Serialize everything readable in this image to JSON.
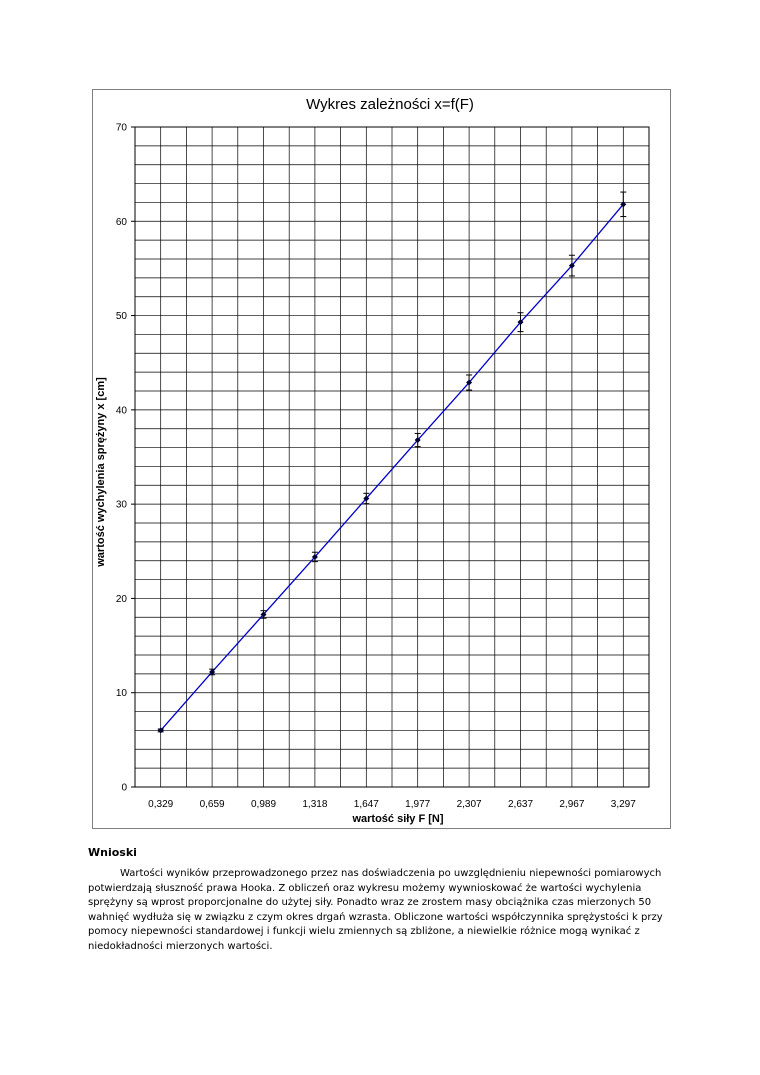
{
  "chart_data": {
    "type": "scatter",
    "title": "Wykres zależności x=f(F)",
    "xlabel": "wartość siły F [N]",
    "ylabel": "wartość wychylenia sprężyny x [cm]",
    "x_ticks": [
      "0,329",
      "0,659",
      "0,989",
      "1,318",
      "1,647",
      "1,977",
      "2,307",
      "2,637",
      "2,967",
      "3,297"
    ],
    "y_ticks": [
      "0",
      "10",
      "20",
      "30",
      "40",
      "50",
      "60",
      "70"
    ],
    "ylim": [
      0,
      70
    ],
    "grid": true,
    "line_color": "#0000cc",
    "series": [
      {
        "x": [
          0.329,
          0.659,
          0.989,
          1.318,
          1.647,
          1.977,
          2.307,
          2.637,
          2.967,
          3.297
        ],
        "values": [
          6.0,
          12.2,
          18.3,
          24.4,
          30.6,
          36.8,
          42.9,
          49.3,
          55.3,
          61.8
        ],
        "errors": [
          0.15,
          0.3,
          0.4,
          0.5,
          0.55,
          0.7,
          0.8,
          1.0,
          1.1,
          1.3
        ]
      }
    ]
  },
  "conclusions": {
    "heading": "Wnioski",
    "text": "Wartości wyników przeprowadzonego przez nas doświadczenia po uwzględnieniu niepewności pomiarowych potwierdzają słuszność prawa Hooka. Z obliczeń oraz wykresu możemy wywnioskować że wartości wychylenia sprężyny są wprost proporcjonalne do użytej siły. Ponadto wraz ze zrostem masy obciążnika czas mierzonych 50 wahnięć wydłuża się w związku z czym okres drgań wzrasta. Obliczone wartości współczynnika sprężystości k przy pomocy niepewności standardowej i funkcji wielu zmiennych są zbliżone, a niewielkie różnice mogą wynikać z niedokładności mierzonych wartości."
  }
}
